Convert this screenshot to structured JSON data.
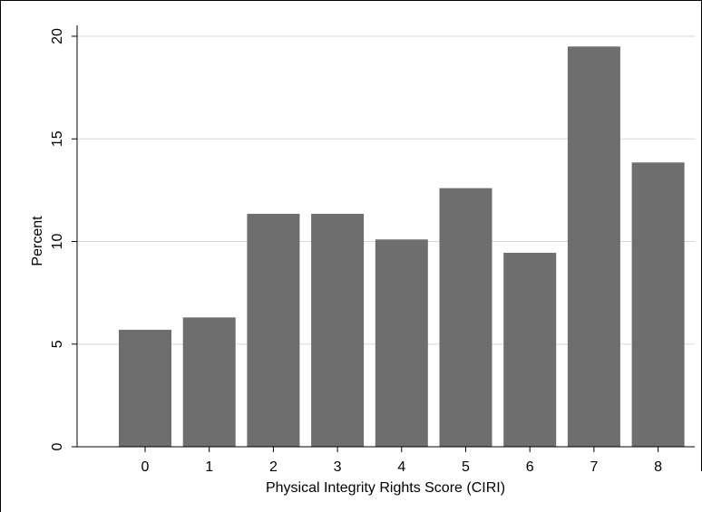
{
  "chart_data": {
    "type": "bar",
    "categories": [
      "0",
      "1",
      "2",
      "3",
      "4",
      "5",
      "6",
      "7",
      "8"
    ],
    "values": [
      5.7,
      6.3,
      11.35,
      11.35,
      10.1,
      12.6,
      9.45,
      19.5,
      13.85
    ],
    "title": "",
    "xlabel": "Physical Integrity Rights Score (CIRI)",
    "ylabel": "Percent",
    "ylim": [
      0,
      20
    ],
    "yticks": [
      0,
      5,
      10,
      15,
      20
    ],
    "grid": true,
    "legend": "none",
    "colors": {
      "bar": "#6e6e6e",
      "grid": "#d9d9d9",
      "axis": "#000000",
      "frame": "#000000",
      "background": "#ffffff"
    }
  }
}
